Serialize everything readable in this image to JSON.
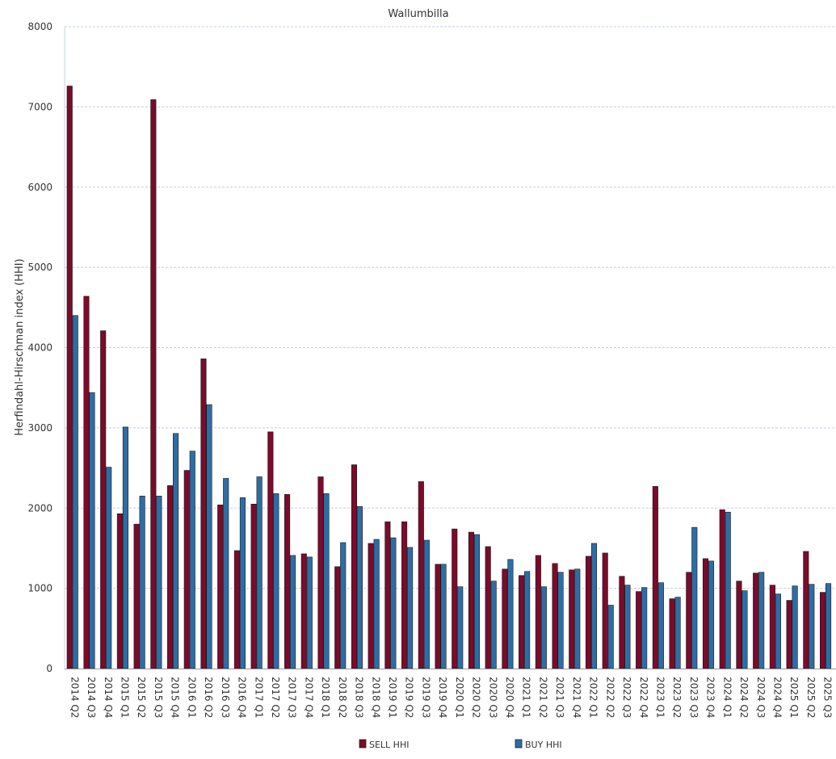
{
  "chart_data": {
    "type": "bar",
    "title": "Wallumbilla",
    "xlabel": "",
    "ylabel": "Herfindahl-Hirschman index (HHI)",
    "ylim": [
      0,
      8000
    ],
    "yticks": [
      "0",
      "1000",
      "2000",
      "3000",
      "4000",
      "5000",
      "6000",
      "7000",
      "8000"
    ],
    "grid": true,
    "legend_position": "bottom",
    "categories": [
      "2014 Q2",
      "2014 Q3",
      "2014 Q4",
      "2015 Q1",
      "2015 Q2",
      "2015 Q3",
      "2015 Q4",
      "2016 Q1",
      "2016 Q2",
      "2016 Q3",
      "2016 Q4",
      "2017 Q1",
      "2017 Q2",
      "2017 Q3",
      "2017 Q4",
      "2018 Q1",
      "2018 Q2",
      "2018 Q3",
      "2018 Q4",
      "2019 Q1",
      "2019 Q2",
      "2019 Q3",
      "2019 Q4",
      "2020 Q1",
      "2020 Q2",
      "2020 Q3",
      "2020 Q4",
      "2021 Q1",
      "2021 Q2",
      "2021 Q3",
      "2021 Q4",
      "2022 Q1",
      "2022 Q2",
      "2022 Q3",
      "2022 Q4",
      "2023 Q1",
      "2023 Q2",
      "2023 Q3",
      "2023 Q4",
      "2024 Q1",
      "2024 Q2",
      "2024 Q3",
      "2024 Q4",
      "2025 Q1",
      "2025 Q2",
      "2025 Q3"
    ],
    "series": [
      {
        "name": "SELL HHI",
        "color": "#7b0a2b",
        "values": [
          7260,
          4640,
          4210,
          1930,
          1800,
          7090,
          2280,
          2470,
          3860,
          2040,
          1470,
          2050,
          2950,
          2170,
          1430,
          2390,
          1270,
          2540,
          1560,
          1830,
          1830,
          2330,
          1300,
          1740,
          1700,
          1520,
          1240,
          1160,
          1410,
          1310,
          1230,
          1400,
          1440,
          1150,
          960,
          2270,
          870,
          1200,
          1370,
          1980,
          1090,
          1190,
          1040,
          850,
          1460,
          950
        ]
      },
      {
        "name": "BUY HHI",
        "color": "#2e6da4",
        "values": [
          4400,
          3440,
          2510,
          3010,
          2150,
          2150,
          2930,
          2710,
          3290,
          2370,
          2130,
          2390,
          2180,
          1410,
          1390,
          2180,
          1570,
          2020,
          1610,
          1630,
          1510,
          1600,
          1300,
          1020,
          1670,
          1090,
          1360,
          1210,
          1020,
          1200,
          1240,
          1560,
          790,
          1040,
          1010,
          1070,
          890,
          1760,
          1340,
          1950,
          970,
          1200,
          930,
          1030,
          1050,
          1060
        ]
      }
    ]
  }
}
